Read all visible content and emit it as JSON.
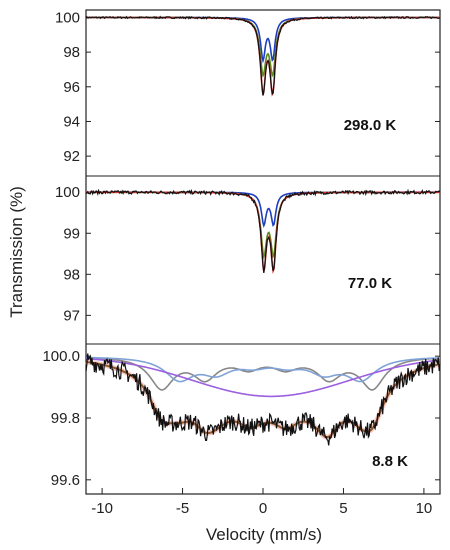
{
  "chart_data": {
    "type": "line",
    "xlabel": "Velocity (mm/s)",
    "ylabel": "Transmission (%)",
    "xlim": [
      -11,
      11
    ],
    "x_ticks": [
      -10,
      -5,
      0,
      5,
      10
    ],
    "x_tick_labels": [
      "-10",
      "-5",
      "0",
      "5",
      "10"
    ],
    "panels": [
      {
        "label": "298.0 K",
        "ylim": [
          91.2,
          100.2
        ],
        "y_ticks": [
          100,
          98,
          96,
          94,
          92
        ],
        "y_tick_labels": [
          "100",
          "98",
          "96",
          "94",
          "92"
        ],
        "components": [
          {
            "color": "#1f3fbf",
            "kind": "doublet",
            "depth": 4.6,
            "center": 0.3,
            "split": 0.6,
            "width": 0.18
          },
          {
            "color": "#5a8a1e",
            "kind": "doublet",
            "depth": 6.0,
            "center": 0.3,
            "split": 0.6,
            "width": 0.22
          },
          {
            "color": "#d83030",
            "kind": "doublet",
            "depth": 8.1,
            "center": 0.3,
            "split": 0.6,
            "width": 0.2
          }
        ],
        "noise": 0.05
      },
      {
        "label": "77.0 K",
        "ylim": [
          96.4,
          100.2
        ],
        "y_ticks": [
          100,
          99,
          98,
          97
        ],
        "y_tick_labels": [
          "100",
          "99",
          "98",
          "97"
        ],
        "components": [
          {
            "color": "#1f3fbf",
            "kind": "doublet",
            "depth": 1.5,
            "center": 0.35,
            "split": 0.6,
            "width": 0.18
          },
          {
            "color": "#5a8a1e",
            "kind": "doublet",
            "depth": 2.8,
            "center": 0.35,
            "split": 0.6,
            "width": 0.22
          },
          {
            "color": "#d83030",
            "kind": "doublet",
            "depth": 3.5,
            "center": 0.35,
            "split": 0.6,
            "width": 0.2
          }
        ],
        "noise": 0.04
      },
      {
        "label": "8.8 K",
        "ylim": [
          99.58,
          100.02
        ],
        "y_ticks": [
          100.0,
          99.8,
          99.6
        ],
        "y_tick_labels": [
          "100.0",
          "99.8",
          "99.6"
        ],
        "components": [
          {
            "color": "#888888",
            "kind": "sextet",
            "depth": 0.1,
            "lines": [
              -6.3,
              -3.6,
              -0.9,
              1.4,
              4.1,
              6.8
            ],
            "width": 0.9
          },
          {
            "color": "#7fa3d6",
            "kind": "sextet",
            "depth": 0.07,
            "lines": [
              -5.2,
              -2.9,
              -0.6,
              1.5,
              3.8,
              6.1
            ],
            "width": 1.1
          },
          {
            "color": "#9b5fe0",
            "kind": "broad",
            "depth": 0.13,
            "center": 0.5,
            "width": 7.5
          }
        ],
        "total_color": "#8b5a2b",
        "noise": 0.03
      }
    ]
  }
}
